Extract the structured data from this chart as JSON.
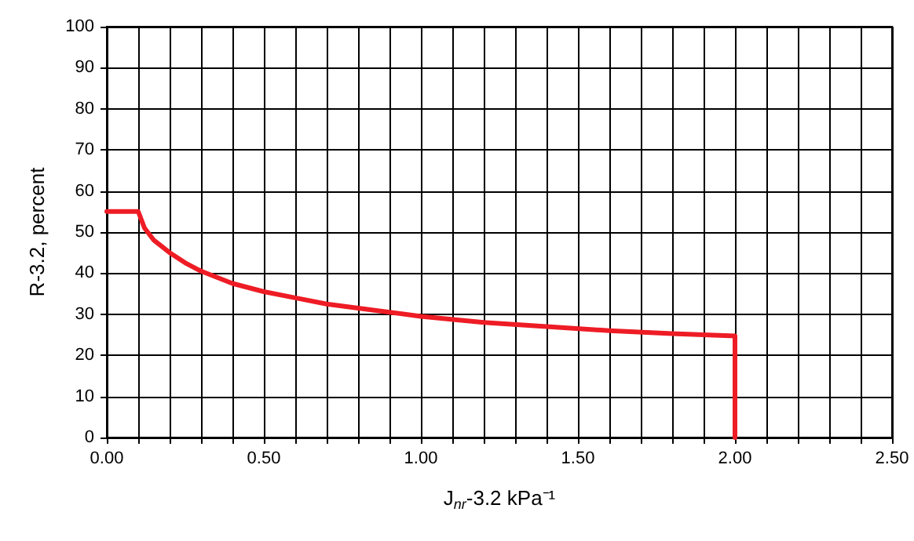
{
  "chart_data": {
    "type": "line",
    "xlabel": "J$_{nr}$-3.2 kPa⁻¹",
    "ylabel": "R-3.2, percent",
    "x": [
      0,
      0.1,
      0.12,
      0.15,
      0.2,
      0.25,
      0.3,
      0.4,
      0.5,
      0.6,
      0.7,
      0.8,
      0.9,
      1.0,
      1.2,
      1.4,
      1.6,
      1.8,
      2.0,
      2.0
    ],
    "series": [
      {
        "color": "#ee1c25",
        "values": [
          55,
          55,
          51,
          48,
          45,
          42.5,
          40.5,
          37.5,
          35.5,
          34,
          32.5,
          31.5,
          30.5,
          29.5,
          28,
          27,
          26,
          25.3,
          24.7,
          0
        ]
      }
    ],
    "xlim": [
      0,
      2.5
    ],
    "xticks": [
      {
        "value": 0,
        "label": "0.00"
      },
      {
        "value": 0.1,
        "label": null
      },
      {
        "value": 0.2,
        "label": null
      },
      {
        "value": 0.3,
        "label": null
      },
      {
        "value": 0.4,
        "label": null
      },
      {
        "value": 0.5,
        "label": "0.50"
      },
      {
        "value": 0.6,
        "label": null
      },
      {
        "value": 0.7,
        "label": null
      },
      {
        "value": 0.8,
        "label": null
      },
      {
        "value": 0.9,
        "label": null
      },
      {
        "value": 1.0,
        "label": "1.00"
      },
      {
        "value": 1.1,
        "label": null
      },
      {
        "value": 1.2,
        "label": null
      },
      {
        "value": 1.3,
        "label": null
      },
      {
        "value": 1.4,
        "label": null
      },
      {
        "value": 1.5,
        "label": "1.50"
      },
      {
        "value": 1.6,
        "label": null
      },
      {
        "value": 1.7,
        "label": null
      },
      {
        "value": 1.8,
        "label": null
      },
      {
        "value": 1.9,
        "label": null
      },
      {
        "value": 2.0,
        "label": "2.00"
      },
      {
        "value": 2.1,
        "label": null
      },
      {
        "value": 2.2,
        "label": null
      },
      {
        "value": 2.3,
        "label": null
      },
      {
        "value": 2.4,
        "label": null
      },
      {
        "value": 2.5,
        "label": "2.50"
      }
    ],
    "ylim": [
      0,
      100
    ],
    "yticks": [
      0,
      10,
      20,
      30,
      40,
      50,
      60,
      70,
      80,
      90,
      100
    ],
    "grid": true,
    "marker": "none",
    "line_style": "solid"
  }
}
